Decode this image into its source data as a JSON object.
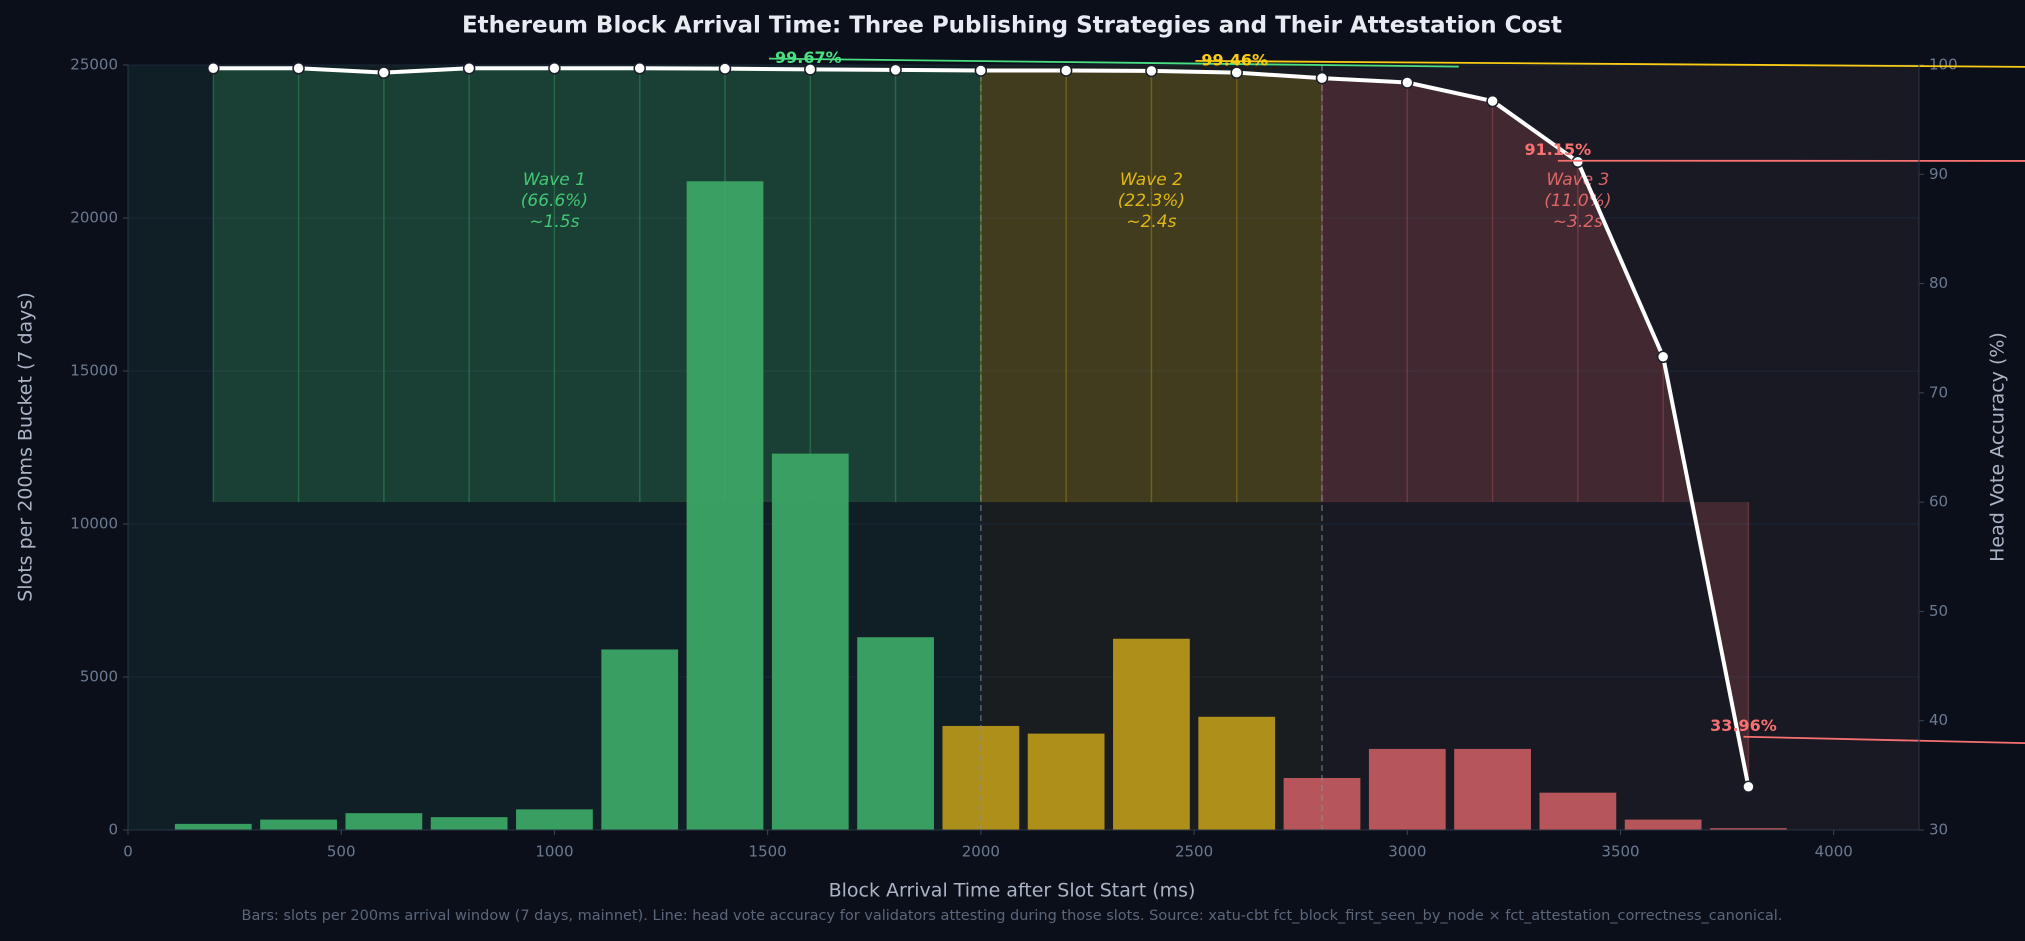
{
  "chart_data": {
    "type": "bar",
    "title": "Ethereum Block Arrival Time: Three Publishing Strategies and Their Attestation Cost",
    "x_label": "Block Arrival Time after Slot Start (ms)",
    "y_label": "Slots per 200ms Bucket (7 days)",
    "y2_label": "Head Vote Accuracy (%)",
    "footnote": "Bars: slots per 200ms arrival window (7 days, mainnet). Line: head vote accuracy for validators attesting during those slots.  Source: xatu-cbt fct_block_first_seen_by_node × fct_attestation_correctness_canonical.",
    "x": [
      200,
      400,
      600,
      800,
      1000,
      1200,
      1400,
      1600,
      1800,
      2000,
      2200,
      2400,
      2600,
      2800,
      3000,
      3200,
      3400,
      3600,
      3800
    ],
    "series": [
      {
        "type": "bar",
        "values": [
          200,
          340,
          550,
          420,
          675,
          5900,
          21200,
          12300,
          6300,
          3400,
          3150,
          6250,
          3700,
          1700,
          2650,
          2650,
          1220,
          340,
          60
        ]
      },
      {
        "type": "line",
        "axis": "y2",
        "color": "#ffffff",
        "values": [
          99.7,
          99.7,
          99.3,
          99.7,
          99.7,
          99.7,
          99.67,
          99.6,
          99.55,
          99.5,
          99.5,
          99.46,
          99.3,
          98.8,
          98.4,
          96.7,
          91.15,
          73.3,
          33.96
        ],
        "value_labels": [
          null,
          null,
          null,
          null,
          null,
          null,
          "99.67%",
          null,
          null,
          null,
          null,
          "99.46%",
          null,
          null,
          null,
          null,
          "91.15%",
          null,
          "33.96%"
        ],
        "fill_to": 60
      }
    ],
    "waves": [
      {
        "label": [
          "Wave 1",
          "(66.6%)",
          "~1.5s"
        ],
        "range": [
          0,
          2000
        ],
        "color": "#4ade80",
        "bar_color": "#3ba564"
      },
      {
        "label": [
          "Wave 2",
          "(22.3%)",
          "~2.4s"
        ],
        "range": [
          2000,
          2800
        ],
        "color": "#facc15",
        "bar_color": "#b5961a"
      },
      {
        "label": [
          "Wave 3",
          "(11.0%)",
          "~3.2s"
        ],
        "range": [
          2800,
          4000
        ],
        "color": "#f87171",
        "bar_color": "#bf5a5e"
      }
    ],
    "xlim": [
      0,
      4200
    ],
    "xticks": [
      0,
      500,
      1000,
      1500,
      2000,
      2500,
      3000,
      3500,
      4000
    ],
    "ylim": [
      0,
      25000
    ],
    "yticks": [
      0,
      5000,
      10000,
      15000,
      20000,
      25000
    ],
    "y2lim": [
      30,
      100
    ],
    "y2ticks": [
      30,
      40,
      50,
      60,
      70,
      80,
      90,
      100
    ],
    "grid": true
  }
}
